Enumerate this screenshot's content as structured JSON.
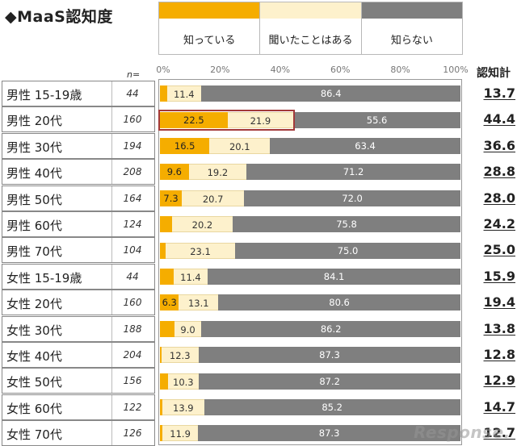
{
  "title": "◆MaaS認知度",
  "n_label": "n=",
  "total_header": "認知計",
  "watermark": "Response.",
  "chart_data": {
    "type": "bar",
    "orientation": "horizontal",
    "stacked": true,
    "title": "MaaS認知度",
    "xlim": [
      0,
      100
    ],
    "x_ticks": [
      "0%",
      "20%",
      "40%",
      "60%",
      "80%",
      "100%"
    ],
    "colors": {
      "aware": "#f5ad00",
      "heard": "#fdf1cc",
      "unknown": "#7f7f7f"
    },
    "legend": [
      "知っている",
      "聞いたことはある",
      "知らない"
    ],
    "highlighted_row": 1,
    "rows": [
      {
        "label": "男性 15-19歳",
        "n": "44",
        "aware": 2.3,
        "heard": 11.4,
        "unknown": 86.4,
        "show_aware": false,
        "total": "13.7"
      },
      {
        "label": "男性 20代",
        "n": "160",
        "aware": 22.5,
        "heard": 21.9,
        "unknown": 55.6,
        "show_aware": true,
        "total": "44.4"
      },
      {
        "label": "男性 30代",
        "n": "194",
        "aware": 16.5,
        "heard": 20.1,
        "unknown": 63.4,
        "show_aware": true,
        "total": "36.6"
      },
      {
        "label": "男性 40代",
        "n": "208",
        "aware": 9.6,
        "heard": 19.2,
        "unknown": 71.2,
        "show_aware": true,
        "total": "28.8"
      },
      {
        "label": "男性 50代",
        "n": "164",
        "aware": 7.3,
        "heard": 20.7,
        "unknown": 72.0,
        "show_aware": true,
        "total": "28.0"
      },
      {
        "label": "男性 60代",
        "n": "124",
        "aware": 4.0,
        "heard": 20.2,
        "unknown": 75.8,
        "show_aware": false,
        "total": "24.2"
      },
      {
        "label": "男性 70代",
        "n": "104",
        "aware": 1.9,
        "heard": 23.1,
        "unknown": 75.0,
        "show_aware": false,
        "total": "25.0"
      },
      {
        "label": "女性 15-19歳",
        "n": "44",
        "aware": 4.5,
        "heard": 11.4,
        "unknown": 84.1,
        "show_aware": false,
        "total": "15.9"
      },
      {
        "label": "女性 20代",
        "n": "160",
        "aware": 6.3,
        "heard": 13.1,
        "unknown": 80.6,
        "show_aware": true,
        "total": "19.4"
      },
      {
        "label": "女性 30代",
        "n": "188",
        "aware": 4.8,
        "heard": 9.0,
        "unknown": 86.2,
        "show_aware": false,
        "total": "13.8"
      },
      {
        "label": "女性 40代",
        "n": "204",
        "aware": 0.5,
        "heard": 12.3,
        "unknown": 87.3,
        "show_aware": false,
        "total": "12.8"
      },
      {
        "label": "女性 50代",
        "n": "156",
        "aware": 2.6,
        "heard": 10.3,
        "unknown": 87.2,
        "show_aware": false,
        "total": "12.9"
      },
      {
        "label": "女性 60代",
        "n": "122",
        "aware": 0.8,
        "heard": 13.9,
        "unknown": 85.2,
        "show_aware": false,
        "total": "14.7"
      },
      {
        "label": "女性 70代",
        "n": "126",
        "aware": 0.8,
        "heard": 11.9,
        "unknown": 87.3,
        "show_aware": false,
        "total": "12.7"
      }
    ]
  }
}
